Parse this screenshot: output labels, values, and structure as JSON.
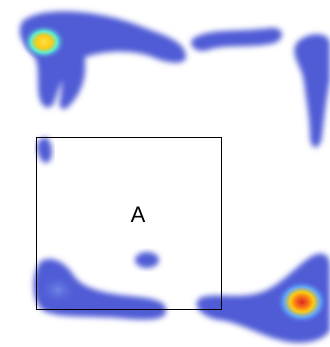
{
  "region": {
    "label": "A"
  },
  "heatmap": {
    "colormap": [
      "#4f5bd5",
      "#60a5fa",
      "#5eead4",
      "#facc15",
      "#f97316",
      "#ef4444"
    ],
    "hotspots": [
      "top-left",
      "bottom-right"
    ]
  }
}
